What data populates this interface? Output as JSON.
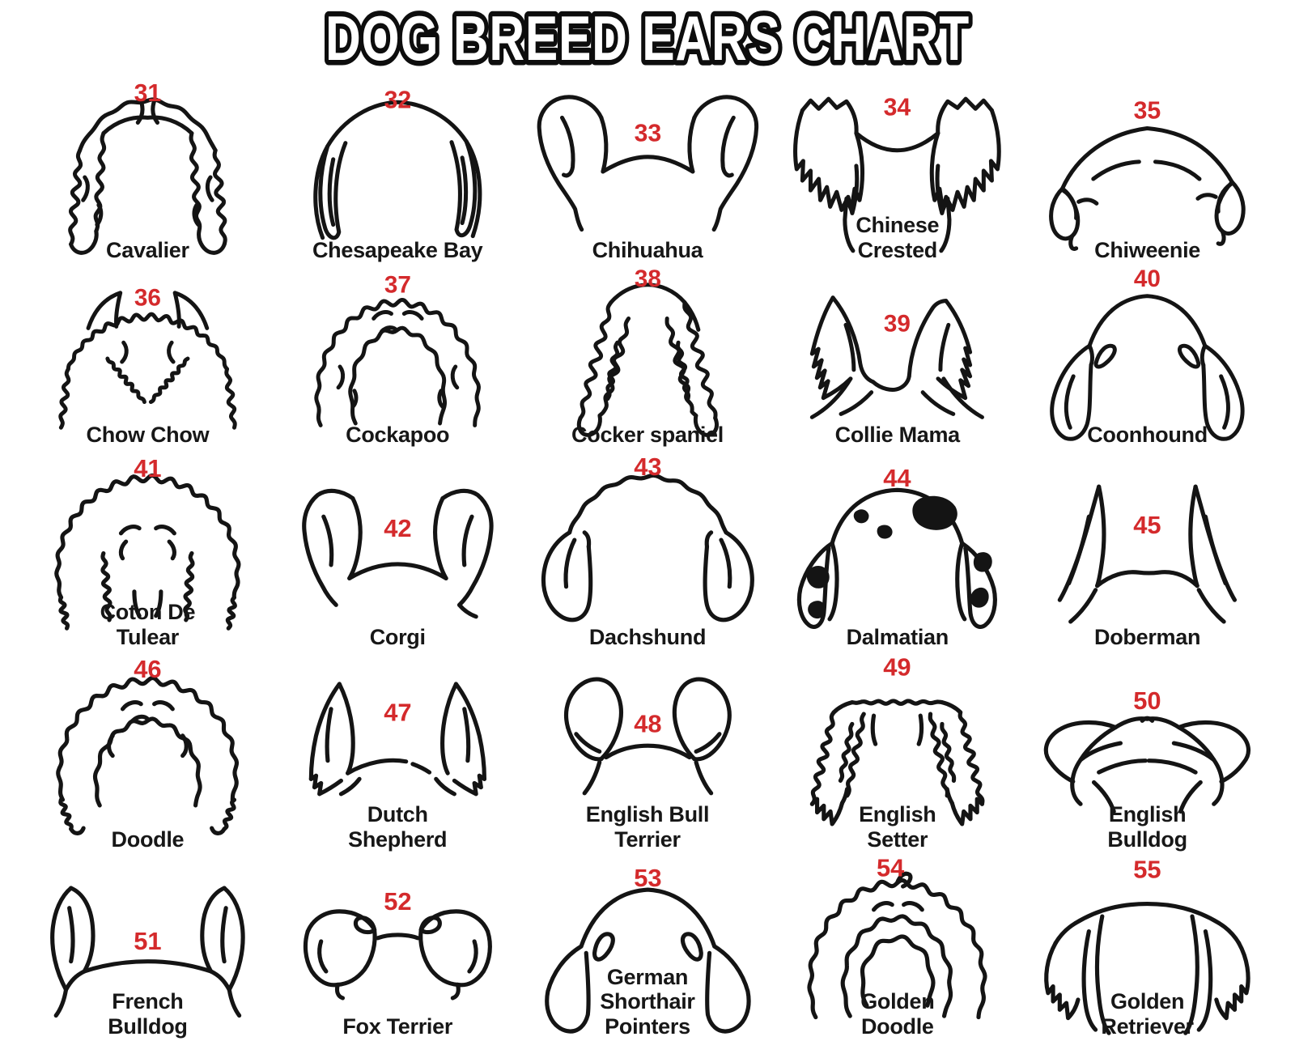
{
  "title": "DOG BREED EARS CHART",
  "colors": {
    "number_red": "#d42a2c",
    "ink": "#141414",
    "background": "#ffffff"
  },
  "cells": [
    {
      "number": "31",
      "name": "Cavalier"
    },
    {
      "number": "32",
      "name": "Chesapeake Bay"
    },
    {
      "number": "33",
      "name": "Chihuahua"
    },
    {
      "number": "34",
      "name": "Chinese\nCrested"
    },
    {
      "number": "35",
      "name": "Chiweenie"
    },
    {
      "number": "36",
      "name": "Chow Chow"
    },
    {
      "number": "37",
      "name": "Cockapoo"
    },
    {
      "number": "38",
      "name": "Cocker spaniel"
    },
    {
      "number": "39",
      "name": "Collie Mama"
    },
    {
      "number": "40",
      "name": "Coonhound"
    },
    {
      "number": "41",
      "name": "Coton De\nTulear"
    },
    {
      "number": "42",
      "name": "Corgi"
    },
    {
      "number": "43",
      "name": "Dachshund"
    },
    {
      "number": "44",
      "name": "Dalmatian"
    },
    {
      "number": "45",
      "name": "Doberman"
    },
    {
      "number": "46",
      "name": "Doodle"
    },
    {
      "number": "47",
      "name": "Dutch\nShepherd"
    },
    {
      "number": "48",
      "name": "English Bull\nTerrier"
    },
    {
      "number": "49",
      "name": "English\nSetter"
    },
    {
      "number": "50",
      "name": "English\nBulldog"
    },
    {
      "number": "51",
      "name": "French\nBulldog"
    },
    {
      "number": "52",
      "name": "Fox Terrier"
    },
    {
      "number": "53",
      "name": "German\nShorthair\nPointers"
    },
    {
      "number": "54",
      "name": "Golden\nDoodle"
    },
    {
      "number": "55",
      "name": "Golden\nRetriever"
    }
  ]
}
